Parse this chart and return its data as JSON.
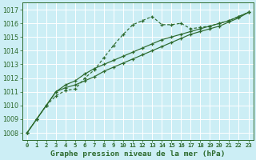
{
  "title": "Graphe pression niveau de la mer (hPa)",
  "bg_color": "#cceef5",
  "grid_color": "#ffffff",
  "line_color": "#2d6a2d",
  "x_labels": [
    "0",
    "1",
    "2",
    "3",
    "4",
    "5",
    "6",
    "7",
    "8",
    "9",
    "10",
    "11",
    "12",
    "13",
    "14",
    "15",
    "16",
    "17",
    "18",
    "19",
    "20",
    "21",
    "22",
    "23"
  ],
  "ylim": [
    1007.5,
    1017.5
  ],
  "yticks": [
    1008,
    1009,
    1010,
    1011,
    1012,
    1013,
    1014,
    1015,
    1016,
    1017
  ],
  "series1": [
    1008.0,
    1009.0,
    1010.0,
    1010.7,
    1011.1,
    1011.2,
    1012.0,
    1012.6,
    1013.5,
    1014.4,
    1015.2,
    1015.9,
    1016.2,
    1016.5,
    1015.9,
    1015.9,
    1016.0,
    1015.6,
    1015.7,
    1015.8,
    1016.0,
    1016.2,
    1016.5,
    1016.8
  ],
  "series2": [
    1008.0,
    1009.0,
    1010.0,
    1011.0,
    1011.5,
    1011.8,
    1012.3,
    1012.7,
    1013.0,
    1013.3,
    1013.6,
    1013.9,
    1014.2,
    1014.5,
    1014.8,
    1015.0,
    1015.2,
    1015.4,
    1015.6,
    1015.8,
    1016.0,
    1016.2,
    1016.5,
    1016.8
  ],
  "series3": [
    1008.0,
    1009.0,
    1010.0,
    1011.0,
    1011.3,
    1011.5,
    1011.8,
    1012.1,
    1012.5,
    1012.8,
    1013.1,
    1013.4,
    1013.7,
    1014.0,
    1014.3,
    1014.6,
    1014.9,
    1015.2,
    1015.4,
    1015.6,
    1015.8,
    1016.1,
    1016.4,
    1016.8
  ]
}
